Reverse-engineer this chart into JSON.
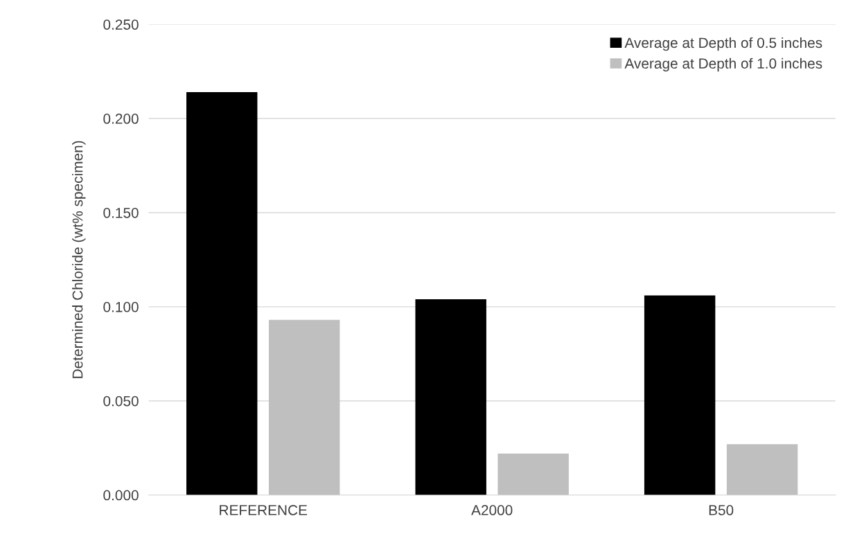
{
  "chart_data": {
    "type": "bar",
    "ylabel": "Determined Chloride (wt% specimen)",
    "categories": [
      "REFERENCE",
      "A2000",
      "B50"
    ],
    "series": [
      {
        "name": "Average at Depth of 0.5 inches",
        "color": "#000000",
        "values": [
          0.214,
          0.104,
          0.106
        ]
      },
      {
        "name": "Average at Depth of 1.0 inches",
        "color": "#bfbfbf",
        "values": [
          0.093,
          0.022,
          0.027
        ]
      }
    ],
    "ylim": [
      0,
      0.25
    ],
    "yticks": [
      {
        "value": 0,
        "label": "0.000"
      },
      {
        "value": 0.05,
        "label": "0.050"
      },
      {
        "value": 0.1,
        "label": "0.100"
      },
      {
        "value": 0.15,
        "label": "0.150"
      },
      {
        "value": 0.2,
        "label": "0.200"
      },
      {
        "value": 0.25,
        "label": "0.250"
      }
    ],
    "grid": "y",
    "legend": "top right"
  }
}
